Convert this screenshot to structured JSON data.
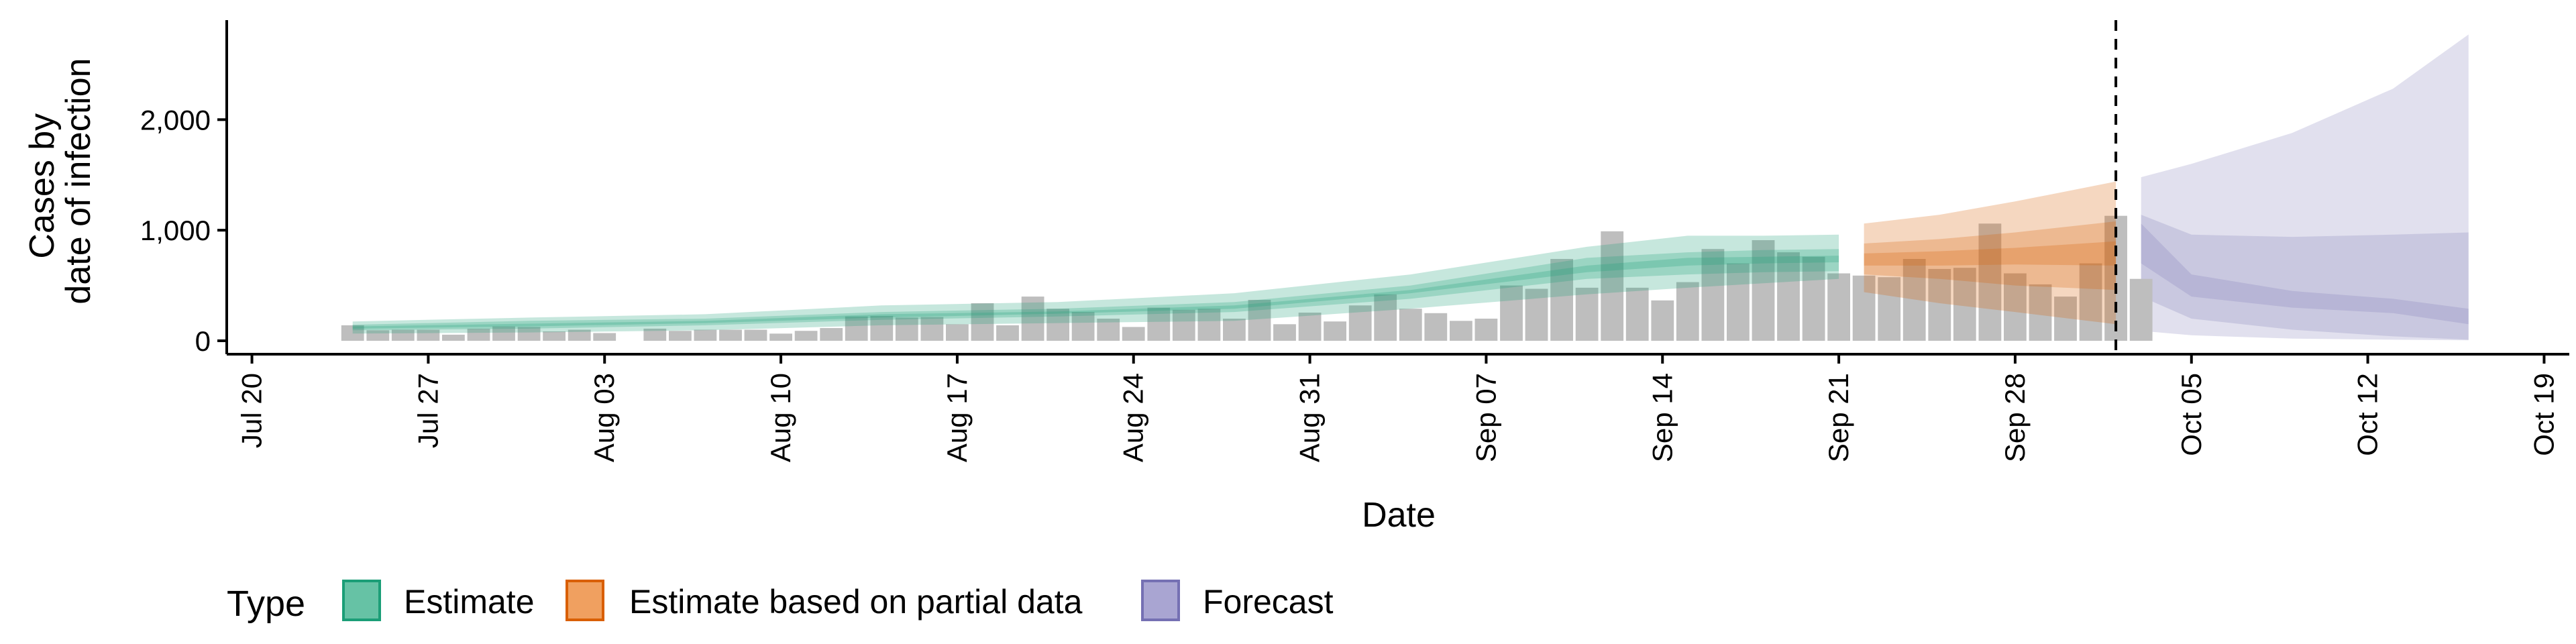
{
  "chart_data": {
    "type": "bar",
    "xlabel": "Date",
    "ylabel_lines": [
      "Cases by",
      "date of infection"
    ],
    "x_ticks": [
      "Jul 20",
      "Jul 27",
      "Aug 03",
      "Aug 10",
      "Aug 17",
      "Aug 24",
      "Aug 31",
      "Sep 07",
      "Sep 14",
      "Sep 21",
      "Sep 28",
      "Oct 05",
      "Oct 12",
      "Oct 19"
    ],
    "y_ticks": [
      0,
      1000,
      2000
    ],
    "y_tick_labels": [
      "0",
      "1,000",
      "2,000"
    ],
    "ylim": [
      0,
      2900
    ],
    "x_range": [
      "2020-07-19",
      "2020-10-20"
    ],
    "cutoff_date": "2020-10-02",
    "bar_dates_start": "2020-07-24",
    "bars": [
      140,
      95,
      100,
      100,
      55,
      110,
      130,
      125,
      85,
      100,
      70,
      0,
      110,
      90,
      100,
      100,
      100,
      65,
      90,
      115,
      220,
      225,
      210,
      215,
      150,
      340,
      140,
      400,
      290,
      260,
      200,
      125,
      300,
      280,
      290,
      200,
      370,
      150,
      255,
      175,
      320,
      420,
      290,
      250,
      180,
      200,
      500,
      470,
      740,
      480,
      990,
      480,
      365,
      530,
      830,
      700,
      910,
      800,
      760,
      610,
      590,
      575,
      740,
      650,
      660,
      1060,
      610,
      510,
      400,
      700,
      1130,
      560
    ],
    "estimate_band_dates": [
      "2020-07-24",
      "2020-07-31",
      "2020-08-07",
      "2020-08-14",
      "2020-08-21",
      "2020-08-28",
      "2020-09-04",
      "2020-09-11",
      "2020-09-15",
      "2020-09-18",
      "2020-09-21"
    ],
    "estimate_bands": [
      {
        "lo": [
          65,
          75,
          95,
          140,
          160,
          180,
          290,
          420,
          480,
          520,
          560
        ],
        "hi": [
          175,
          210,
          240,
          320,
          350,
          430,
          600,
          850,
          950,
          950,
          960
        ]
      },
      {
        "lo": [
          95,
          110,
          140,
          190,
          220,
          260,
          380,
          560,
          600,
          620,
          630
        ],
        "hi": [
          145,
          180,
          200,
          260,
          290,
          350,
          500,
          750,
          800,
          820,
          830
        ]
      },
      {
        "lo": [
          110,
          130,
          160,
          210,
          245,
          290,
          430,
          620,
          680,
          700,
          710
        ],
        "hi": [
          130,
          155,
          180,
          240,
          265,
          320,
          460,
          680,
          750,
          760,
          770
        ]
      }
    ],
    "partial_band_dates": [
      "2020-09-22",
      "2020-09-25",
      "2020-09-28",
      "2020-10-02"
    ],
    "partial_bands": [
      {
        "lo": [
          440,
          340,
          260,
          150
        ],
        "hi": [
          1060,
          1140,
          1260,
          1440
        ]
      },
      {
        "lo": [
          600,
          560,
          500,
          460
        ],
        "hi": [
          880,
          920,
          980,
          1080
        ]
      },
      {
        "lo": [
          680,
          680,
          690,
          680
        ],
        "hi": [
          790,
          810,
          840,
          900
        ]
      }
    ],
    "forecast_band_dates": [
      "2020-10-03",
      "2020-10-05",
      "2020-10-09",
      "2020-10-13",
      "2020-10-16"
    ],
    "forecast_bands": [
      {
        "lo": [
          90,
          50,
          20,
          10,
          5
        ],
        "hi": [
          1480,
          1600,
          1880,
          2280,
          2770
        ]
      },
      {
        "lo": [
          400,
          200,
          100,
          40,
          10
        ],
        "hi": [
          1140,
          960,
          940,
          960,
          980
        ]
      },
      {
        "lo": [
          700,
          400,
          300,
          250,
          150
        ],
        "hi": [
          1060,
          600,
          450,
          380,
          290
        ]
      }
    ],
    "legend": {
      "title": "Type",
      "placement": "bottom",
      "items": [
        {
          "label": "Estimate",
          "fill": "#66C2A5",
          "stroke": "#1B9E77"
        },
        {
          "label": "Estimate based on partial data",
          "fill": "#F0A060",
          "stroke": "#D95F02"
        },
        {
          "label": "Forecast",
          "fill": "#A9A5D2",
          "stroke": "#7570B3"
        }
      ]
    },
    "colors": {
      "bar": "#BEBEBE",
      "estimate": "#1B9E77",
      "partial": "#D95F02",
      "forecast": "#7570B3"
    }
  }
}
